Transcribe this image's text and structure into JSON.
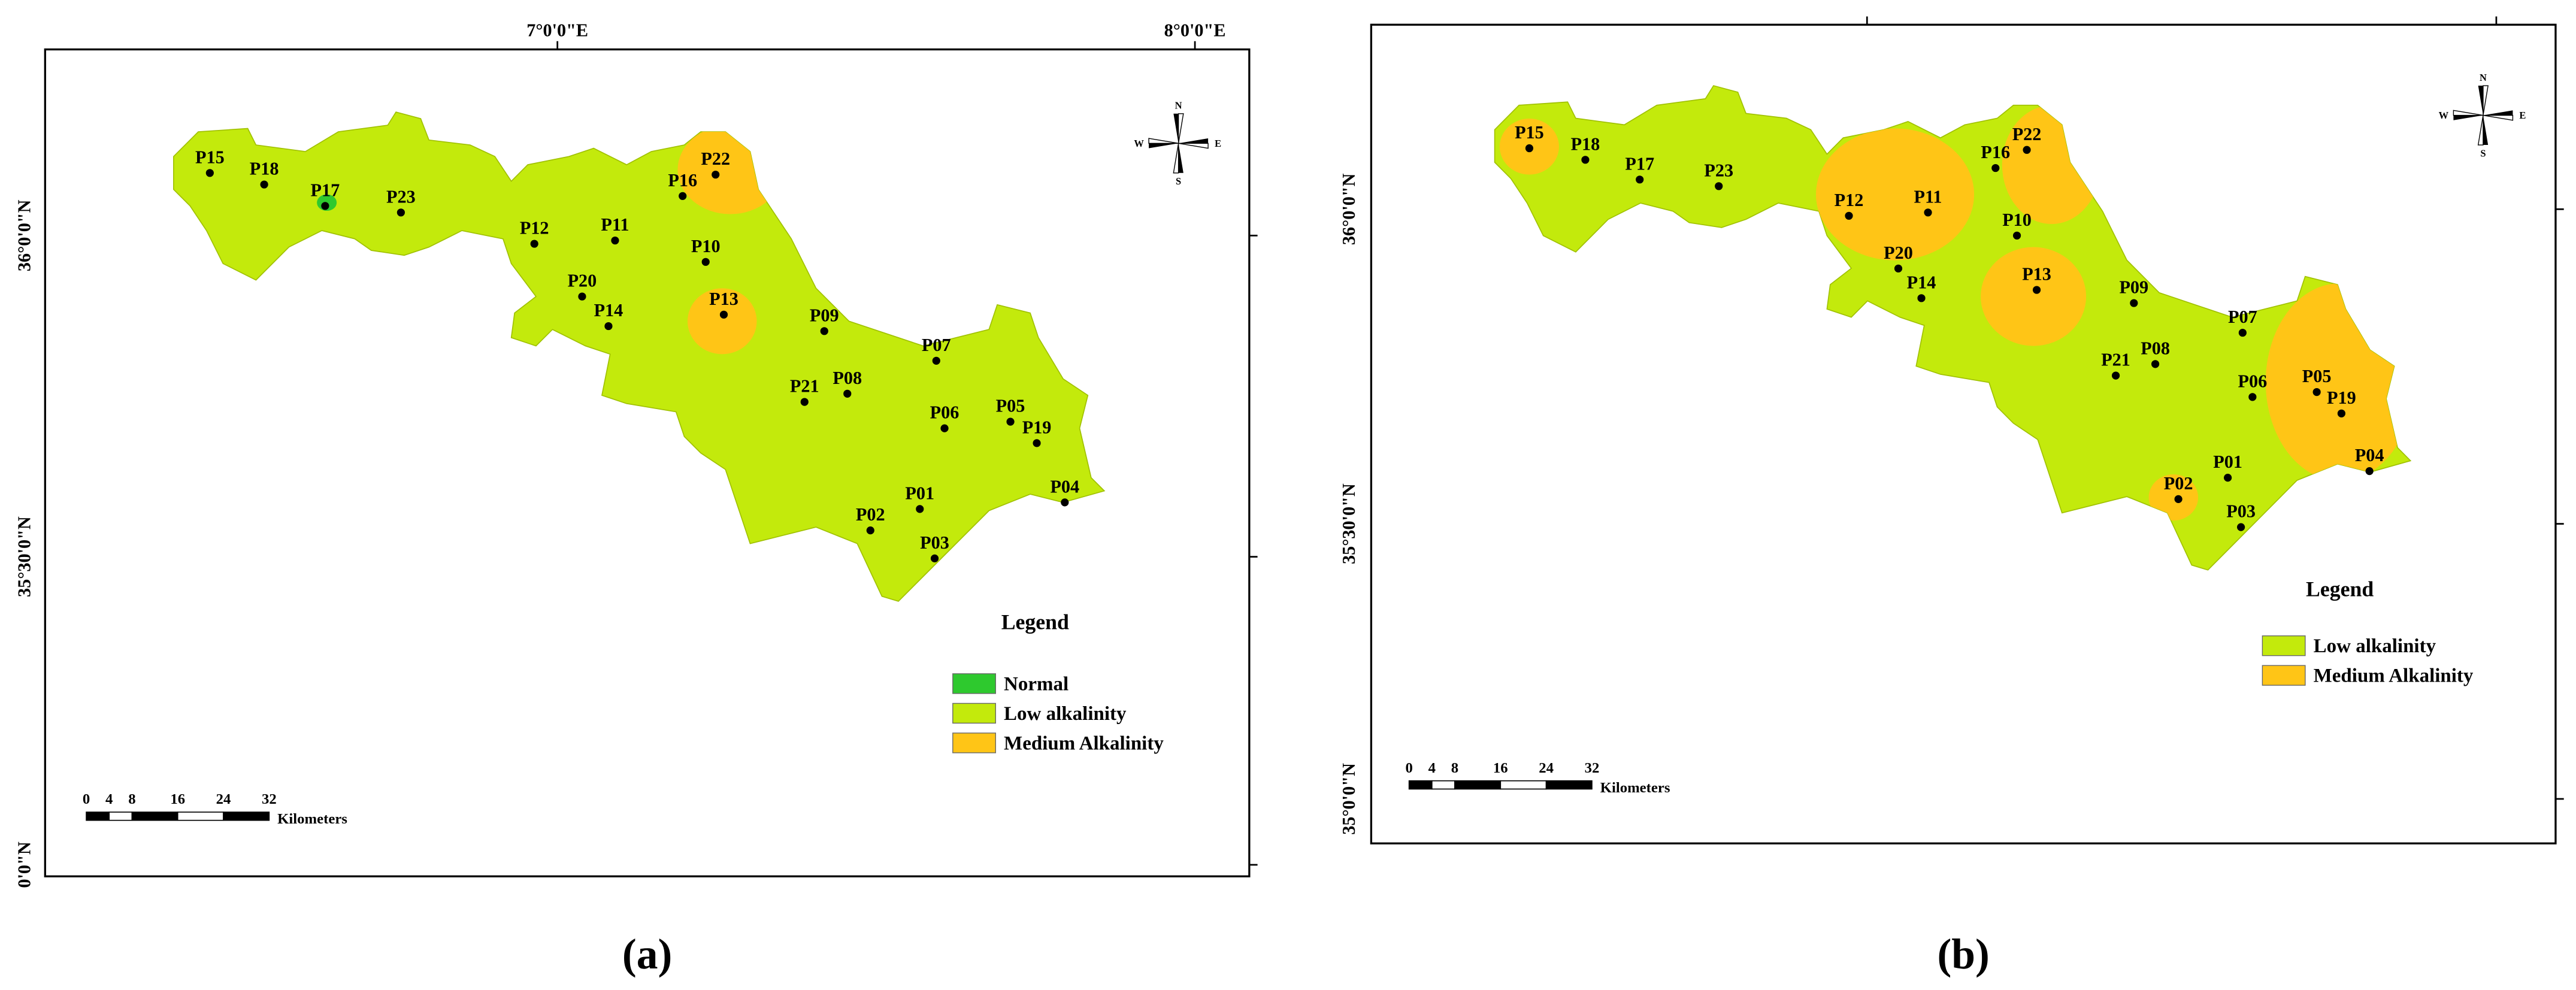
{
  "panels": [
    {
      "label": "(a)",
      "top_axis_labels": [
        "7°0'0\"E",
        "8°0'0\"E"
      ],
      "left_axis_labels": [
        "36°0'0\"N",
        "35°30'0\"N",
        "0'0\"N"
      ],
      "compass": [
        "N",
        "E",
        "S",
        "W"
      ],
      "points": [
        "P15",
        "P18",
        "P17",
        "P23",
        "P12",
        "P11",
        "P16",
        "P22",
        "P10",
        "P20",
        "P14",
        "P13",
        "P09",
        "P07",
        "P21",
        "P08",
        "P06",
        "P05",
        "P19",
        "P04",
        "P01",
        "P02",
        "P03"
      ],
      "legend": {
        "title": "Legend",
        "items": [
          {
            "name": "Normal",
            "color": "#2ec92e"
          },
          {
            "name": "Low alkalinity",
            "color": "#c3ea0c"
          },
          {
            "name": "Medium Alkalinity",
            "color": "#ffc516"
          }
        ]
      },
      "scale": {
        "ticks": [
          0,
          4,
          8,
          16,
          24,
          32
        ],
        "unit": "Kilometers"
      }
    },
    {
      "label": "(b)",
      "top_axis_labels": [],
      "left_axis_labels": [
        "36°0'0\"N",
        "35°30'0\"N",
        "35°0'0\"N"
      ],
      "compass": [
        "N",
        "E",
        "S",
        "W"
      ],
      "points": [
        "P15",
        "P18",
        "P17",
        "P23",
        "P12",
        "P11",
        "P16",
        "P22",
        "P10",
        "P20",
        "P14",
        "P13",
        "P09",
        "P07",
        "P21",
        "P08",
        "P06",
        "P05",
        "P19",
        "P04",
        "P01",
        "P02",
        "P03"
      ],
      "legend": {
        "title": "Legend",
        "items": [
          {
            "name": "Low alkalinity",
            "color": "#c3ea0c"
          },
          {
            "name": "Medium Alkalinity",
            "color": "#ffc516"
          }
        ]
      },
      "scale": {
        "ticks": [
          0,
          4,
          8,
          16,
          24,
          32
        ],
        "unit": "Kilometers"
      }
    }
  ]
}
